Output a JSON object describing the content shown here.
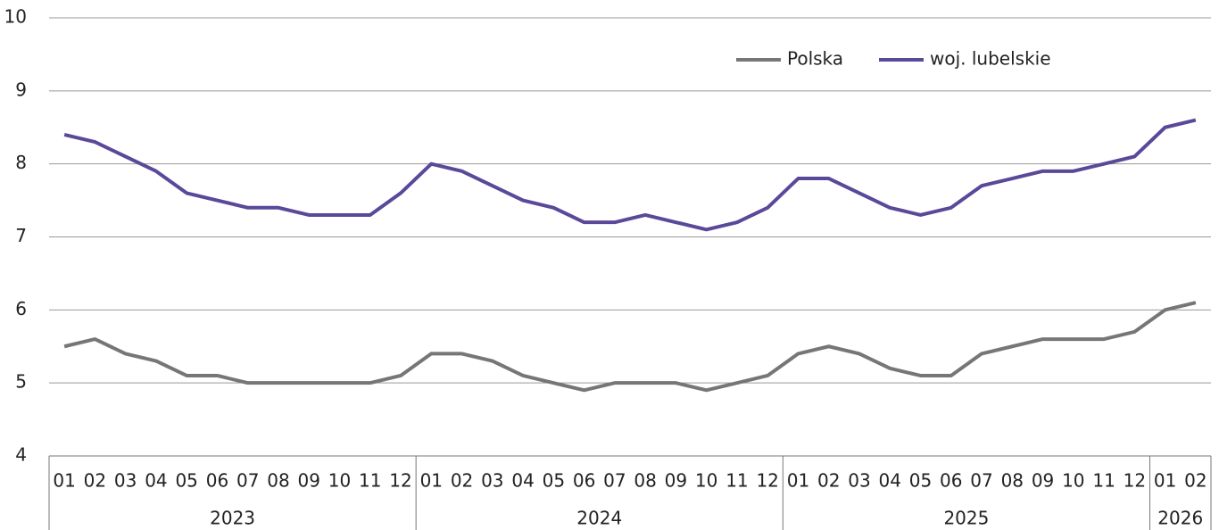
{
  "chart_data": {
    "type": "line",
    "category_groups": [
      {
        "label": "2023",
        "categories": [
          "01",
          "02",
          "03",
          "04",
          "05",
          "06",
          "07",
          "08",
          "09",
          "10",
          "11",
          "12"
        ]
      },
      {
        "label": "2024",
        "categories": [
          "01",
          "02",
          "03",
          "04",
          "05",
          "06",
          "07",
          "08",
          "09",
          "10",
          "11",
          "12"
        ]
      },
      {
        "label": "2025",
        "categories": [
          "01",
          "02",
          "03",
          "04",
          "05",
          "06",
          "07",
          "08",
          "09",
          "10",
          "11",
          "12"
        ]
      },
      {
        "label": "2026",
        "categories": [
          "01",
          "02"
        ]
      }
    ],
    "series": [
      {
        "name": "Polska",
        "color": "#767676",
        "values": [
          5.5,
          5.6,
          5.4,
          5.3,
          5.1,
          5.1,
          5.0,
          5.0,
          5.0,
          5.0,
          5.0,
          5.1,
          5.4,
          5.4,
          5.3,
          5.1,
          5.0,
          4.9,
          5.0,
          5.0,
          5.0,
          4.9,
          5.0,
          5.1,
          5.4,
          5.5,
          5.4,
          5.2,
          5.1,
          5.1,
          5.4,
          5.5,
          5.6,
          5.6,
          5.6,
          5.7,
          6.0,
          6.1
        ]
      },
      {
        "name": "woj. lubelskie",
        "color": "#5a4899",
        "values": [
          8.4,
          8.3,
          8.1,
          7.9,
          7.6,
          7.5,
          7.4,
          7.4,
          7.3,
          7.3,
          7.3,
          7.6,
          8.0,
          7.9,
          7.7,
          7.5,
          7.4,
          7.2,
          7.2,
          7.3,
          7.2,
          7.1,
          7.2,
          7.4,
          7.8,
          7.8,
          7.6,
          7.4,
          7.3,
          7.4,
          7.7,
          7.8,
          7.9,
          7.9,
          8.0,
          8.1,
          8.5,
          8.6
        ]
      }
    ],
    "ylim": [
      4,
      10
    ],
    "yticks": [
      4,
      5,
      6,
      7,
      8,
      9,
      10
    ],
    "grid": true
  }
}
